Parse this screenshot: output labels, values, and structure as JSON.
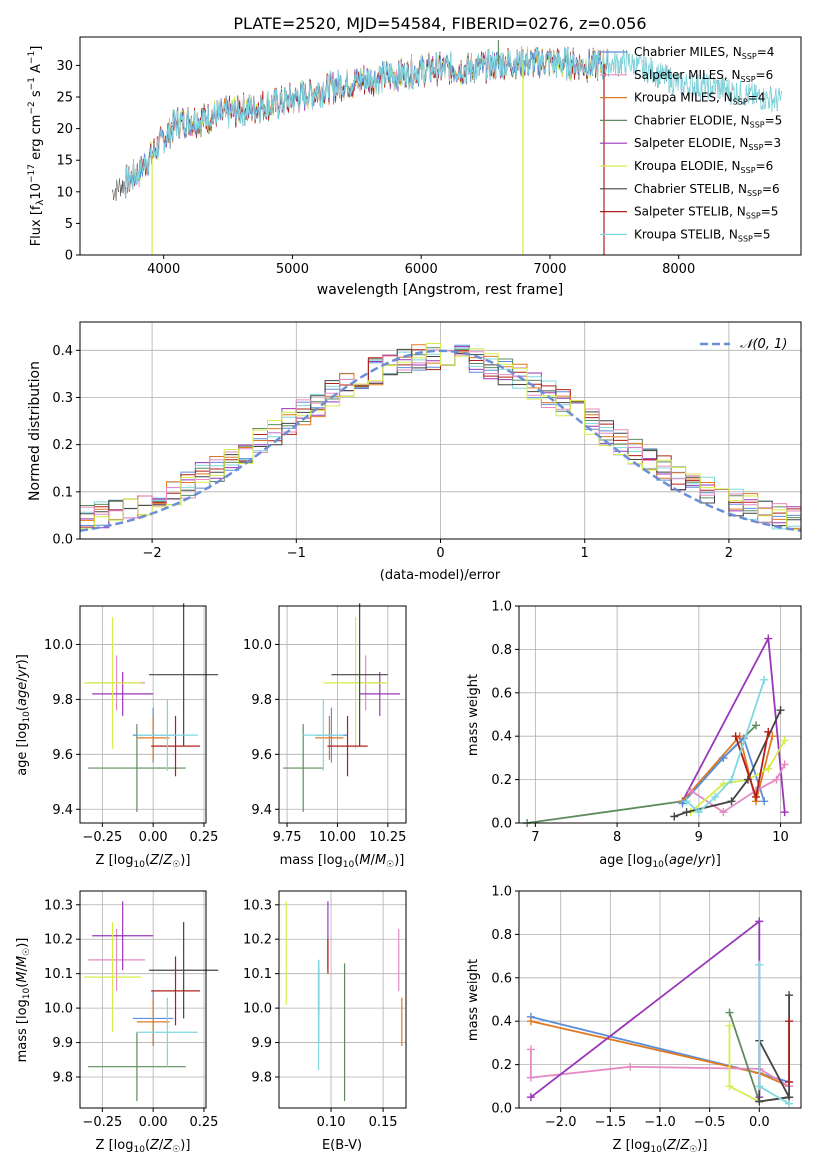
{
  "figure_title": "PLATE=2520, MJD=54584, FIBERID=0276, z=0.056",
  "colors": {
    "chabrier_miles": "#5b8fd9",
    "salpeter_miles": "#e58ac4",
    "kroupa_miles": "#e07a22",
    "chabrier_elodie": "#5e8c5e",
    "salpeter_elodie": "#9a36b8",
    "kroupa_elodie": "#d4ee4e",
    "chabrier_stelib": "#444444",
    "salpeter_stelib": "#b0201a",
    "kroupa_stelib": "#7fd8e0",
    "normal_curve": "#6a8fd6"
  },
  "chart_data": [
    {
      "id": "spectrum",
      "type": "line",
      "xlabel": "wavelength [Angstrom, rest frame]",
      "ylabel": "Flux [f_λ10^-17 erg cm^-2 s^-1 A^-1]",
      "xlim": [
        3350,
        8950
      ],
      "ylim": [
        0,
        34.5
      ],
      "xticks": [
        4000,
        5000,
        6000,
        7000,
        8000
      ],
      "yticks": [
        0,
        5,
        10,
        15,
        20,
        25,
        30
      ],
      "grid": false,
      "legend_position": "lower-right",
      "legend": [
        "Chabrier MILES, N_SSP=4",
        "Salpeter MILES, N_SSP=6",
        "Kroupa MILES, N_SSP=4",
        "Chabrier ELODIE, N_SSP=5",
        "Salpeter ELODIE, N_SSP=3",
        "Kroupa ELODIE, N_SSP=6",
        "Chabrier STELIB, N_SSP=6",
        "Salpeter STELIB, N_SSP=5",
        "Kroupa STELIB, N_SSP=5"
      ],
      "continuum": {
        "x": [
          3600,
          3800,
          3950,
          4100,
          4300,
          4600,
          4900,
          5200,
          5500,
          5800,
          6100,
          6400,
          6700,
          7000,
          7300,
          7600,
          7800,
          8000,
          8300,
          8600,
          8800
        ],
        "y": [
          10,
          13,
          17,
          21,
          21.5,
          23,
          24,
          26,
          27.5,
          28.5,
          29.5,
          29.5,
          30.5,
          30.5,
          30,
          30.5,
          29,
          27,
          26.5,
          25,
          24.5
        ]
      },
      "spikes": [
        {
          "x": 3910,
          "y": 0
        },
        {
          "x": 6790,
          "y": 0
        },
        {
          "x": 7420,
          "y": 0
        },
        {
          "x": 6600,
          "y": 34
        }
      ]
    },
    {
      "id": "residuals",
      "type": "histogram",
      "xlabel": "(data-model)/error",
      "ylabel": "Normed distribution",
      "xlim": [
        -2.5,
        2.5
      ],
      "ylim": [
        0,
        0.46
      ],
      "xticks": [
        -2,
        -1,
        0,
        1,
        2
      ],
      "yticks": [
        0.0,
        0.1,
        0.2,
        0.3,
        0.4
      ],
      "grid": true,
      "legend_position": "upper-right",
      "legend": [
        "𝒩(0, 1)"
      ],
      "reference_curve": "normal(0, 1)",
      "bin_width": 0.1,
      "series_count": 9
    },
    {
      "id": "age_vs_Z",
      "type": "errorbar",
      "xlabel": "Z [log10(Z/Z☉)]",
      "ylabel": "age [log10(age/yr)]",
      "xlim": [
        -0.36,
        0.26
      ],
      "ylim": [
        9.35,
        10.14
      ],
      "xticks": [
        -0.25,
        0.0,
        0.25
      ],
      "xtick_labels": [
        "−0.25",
        "0.00",
        "0.25"
      ],
      "yticks": [
        9.4,
        9.6,
        9.8,
        10.0
      ],
      "ytick_labels": [
        "9.4",
        "9.6",
        "9.8",
        "10.0"
      ],
      "grid": true,
      "points": [
        {
          "series": "chabrier_miles",
          "x": 0.0,
          "xerr": 0.1,
          "y": 9.67,
          "yerr": 0.1
        },
        {
          "series": "salpeter_miles",
          "x": -0.18,
          "xerr": 0.14,
          "y": 9.86,
          "yerr": 0.1
        },
        {
          "series": "kroupa_miles",
          "x": 0.0,
          "xerr": 0.08,
          "y": 9.66,
          "yerr": 0.08
        },
        {
          "series": "chabrier_elodie",
          "x": -0.08,
          "xerr": 0.24,
          "y": 9.55,
          "yerr": 0.16
        },
        {
          "series": "salpeter_elodie",
          "x": -0.15,
          "xerr": 0.15,
          "y": 9.82,
          "yerr": 0.08
        },
        {
          "series": "kroupa_elodie",
          "x": -0.2,
          "xerr": 0.14,
          "y": 9.86,
          "yerr": 0.24
        },
        {
          "series": "chabrier_stelib",
          "x": 0.15,
          "xerr": 0.17,
          "y": 9.89,
          "yerr": 0.26
        },
        {
          "series": "salpeter_stelib",
          "x": 0.11,
          "xerr": 0.12,
          "y": 9.63,
          "yerr": 0.11
        },
        {
          "series": "kroupa_stelib",
          "x": 0.07,
          "xerr": 0.15,
          "y": 9.67,
          "yerr": 0.13
        }
      ]
    },
    {
      "id": "age_vs_mass",
      "type": "errorbar",
      "xlabel": "mass [log10(M/M☉)]",
      "xlim": [
        9.71,
        10.34
      ],
      "ylim": [
        9.35,
        10.14
      ],
      "xticks": [
        9.75,
        10.0,
        10.25
      ],
      "xtick_labels": [
        "9.75",
        "10.00",
        "10.25"
      ],
      "yticks": [
        9.4,
        9.6,
        9.8,
        10.0
      ],
      "ytick_labels": [
        "9.4",
        "9.6",
        "9.8",
        "10.0"
      ],
      "grid": true,
      "points": [
        {
          "series": "chabrier_miles",
          "x": 9.97,
          "xerr": 0.08,
          "y": 9.67,
          "yerr": 0.1
        },
        {
          "series": "salpeter_miles",
          "x": 10.14,
          "xerr": 0.09,
          "y": 9.86,
          "yerr": 0.1
        },
        {
          "series": "kroupa_miles",
          "x": 9.96,
          "xerr": 0.07,
          "y": 9.66,
          "yerr": 0.08
        },
        {
          "series": "chabrier_elodie",
          "x": 9.83,
          "xerr": 0.1,
          "y": 9.55,
          "yerr": 0.16
        },
        {
          "series": "salpeter_elodie",
          "x": 10.21,
          "xerr": 0.1,
          "y": 9.82,
          "yerr": 0.08
        },
        {
          "series": "kroupa_elodie",
          "x": 10.09,
          "xerr": 0.16,
          "y": 9.86,
          "yerr": 0.24
        },
        {
          "series": "chabrier_stelib",
          "x": 10.11,
          "xerr": 0.14,
          "y": 9.89,
          "yerr": 0.26
        },
        {
          "series": "salpeter_stelib",
          "x": 10.05,
          "xerr": 0.1,
          "y": 9.63,
          "yerr": 0.11
        },
        {
          "series": "kroupa_stelib",
          "x": 9.93,
          "xerr": 0.1,
          "y": 9.67,
          "yerr": 0.13
        }
      ]
    },
    {
      "id": "mass_weight_vs_age",
      "type": "line",
      "xlabel": "age [log10(age/yr)]",
      "ylabel": "mass weight",
      "xlim": [
        6.8,
        10.25
      ],
      "ylim": [
        0,
        1.0
      ],
      "xticks": [
        7,
        8,
        9,
        10
      ],
      "yticks": [
        0.0,
        0.2,
        0.4,
        0.6,
        0.8,
        1.0
      ],
      "grid": true,
      "series": [
        {
          "key": "chabrier_elodie",
          "x": [
            6.9,
            8.8,
            9.3,
            9.7
          ],
          "y": [
            0.0,
            0.1,
            0.3,
            0.45
          ]
        },
        {
          "key": "salpeter_elodie",
          "x": [
            8.8,
            9.85,
            10.05
          ],
          "y": [
            0.1,
            0.85,
            0.05
          ]
        },
        {
          "key": "kroupa_miles",
          "x": [
            8.8,
            9.5,
            9.7,
            9.9
          ],
          "y": [
            0.1,
            0.4,
            0.1,
            0.4
          ]
        },
        {
          "key": "chabrier_miles",
          "x": [
            8.8,
            9.3,
            9.55,
            9.8
          ],
          "y": [
            0.09,
            0.3,
            0.39,
            0.1
          ]
        },
        {
          "key": "salpeter_miles",
          "x": [
            8.9,
            9.3,
            9.7,
            9.95,
            10.05
          ],
          "y": [
            0.15,
            0.05,
            0.15,
            0.2,
            0.27
          ]
        },
        {
          "key": "kroupa_elodie",
          "x": [
            8.9,
            9.3,
            9.6,
            9.85,
            10.05
          ],
          "y": [
            0.05,
            0.18,
            0.2,
            0.25,
            0.38
          ]
        },
        {
          "key": "chabrier_stelib",
          "x": [
            8.7,
            8.85,
            9.4,
            9.6,
            10.0
          ],
          "y": [
            0.03,
            0.05,
            0.1,
            0.2,
            0.52
          ]
        },
        {
          "key": "salpeter_stelib",
          "x": [
            9.45,
            9.7,
            9.85
          ],
          "y": [
            0.4,
            0.12,
            0.42
          ]
        },
        {
          "key": "kroupa_stelib",
          "x": [
            8.85,
            9.0,
            9.2,
            9.4,
            9.8
          ],
          "y": [
            0.1,
            0.05,
            0.12,
            0.2,
            0.66
          ]
        }
      ]
    },
    {
      "id": "mass_vs_Z",
      "type": "errorbar",
      "xlabel": "Z [log10(Z/Z☉)]",
      "ylabel": "mass [log10(M/M☉)]",
      "xlim": [
        -0.36,
        0.26
      ],
      "ylim": [
        9.71,
        10.34
      ],
      "xticks": [
        -0.25,
        0.0,
        0.25
      ],
      "xtick_labels": [
        "−0.25",
        "0.00",
        "0.25"
      ],
      "yticks": [
        9.8,
        9.9,
        10.0,
        10.1,
        10.2,
        10.3
      ],
      "ytick_labels": [
        "9.8",
        "9.9",
        "10.0",
        "10.1",
        "10.2",
        "10.3"
      ],
      "grid": true,
      "points": [
        {
          "series": "chabrier_miles",
          "x": 0.0,
          "xerr": 0.1,
          "y": 9.97,
          "yerr": 0.08
        },
        {
          "series": "salpeter_miles",
          "x": -0.18,
          "xerr": 0.14,
          "y": 10.14,
          "yerr": 0.09
        },
        {
          "series": "kroupa_miles",
          "x": 0.0,
          "xerr": 0.08,
          "y": 9.96,
          "yerr": 0.07
        },
        {
          "series": "chabrier_elodie",
          "x": -0.08,
          "xerr": 0.24,
          "y": 9.83,
          "yerr": 0.1
        },
        {
          "series": "salpeter_elodie",
          "x": -0.15,
          "xerr": 0.15,
          "y": 10.21,
          "yerr": 0.1
        },
        {
          "series": "kroupa_elodie",
          "x": -0.2,
          "xerr": 0.14,
          "y": 10.09,
          "yerr": 0.16
        },
        {
          "series": "chabrier_stelib",
          "x": 0.15,
          "xerr": 0.17,
          "y": 10.11,
          "yerr": 0.14
        },
        {
          "series": "salpeter_stelib",
          "x": 0.11,
          "xerr": 0.12,
          "y": 10.05,
          "yerr": 0.1
        },
        {
          "series": "kroupa_stelib",
          "x": 0.07,
          "xerr": 0.15,
          "y": 9.93,
          "yerr": 0.1
        }
      ]
    },
    {
      "id": "mass_vs_ebv",
      "type": "errorbar",
      "xlabel": "E(B-V)",
      "xlim": [
        0.05,
        0.172
      ],
      "ylim": [
        9.71,
        10.34
      ],
      "xticks": [
        0.1,
        0.15
      ],
      "xtick_labels": [
        "0.10",
        "0.15"
      ],
      "yticks": [
        9.8,
        9.9,
        10.0,
        10.1,
        10.2,
        10.3
      ],
      "ytick_labels": [
        "9.8",
        "9.9",
        "10.0",
        "10.1",
        "10.2",
        "10.3"
      ],
      "grid": true,
      "points": [
        {
          "series": "chabrier_miles",
          "x": 0.088,
          "y": 10.05,
          "yerr": 0.07
        },
        {
          "series": "salpeter_miles",
          "x": 0.165,
          "y": 10.14,
          "yerr": 0.09
        },
        {
          "series": "kroupa_miles",
          "x": 0.168,
          "y": 9.96,
          "yerr": 0.07
        },
        {
          "series": "chabrier_elodie",
          "x": 0.113,
          "y": 9.93,
          "yerr": 0.2
        },
        {
          "series": "salpeter_elodie",
          "x": 0.097,
          "y": 10.21,
          "yerr": 0.1
        },
        {
          "series": "kroupa_elodie",
          "x": 0.057,
          "y": 10.16,
          "yerr": 0.15
        },
        {
          "series": "chabrier_stelib",
          "x": 0.088,
          "y": 10.02,
          "yerr": 0.12
        },
        {
          "series": "salpeter_stelib",
          "x": 0.097,
          "y": 10.15,
          "yerr": 0.05
        },
        {
          "series": "kroupa_stelib",
          "x": 0.088,
          "y": 9.98,
          "yerr": 0.16
        }
      ]
    },
    {
      "id": "mass_weight_vs_Z",
      "type": "line",
      "xlabel": "Z [log10(Z/Z☉)]",
      "ylabel": "mass weight",
      "xlim": [
        -2.42,
        0.42
      ],
      "ylim": [
        0,
        1.0
      ],
      "xticks": [
        -2.0,
        -1.5,
        -1.0,
        -0.5,
        0.0
      ],
      "xtick_labels": [
        "−2.0",
        "−1.5",
        "−1.0",
        "−0.5",
        "0.0"
      ],
      "yticks": [
        0.0,
        0.2,
        0.4,
        0.6,
        0.8,
        1.0
      ],
      "grid": true,
      "series": [
        {
          "key": "chabrier_miles",
          "x": [
            -2.3,
            0.0,
            0.3
          ],
          "y": [
            0.42,
            0.16,
            0.12
          ]
        },
        {
          "key": "kroupa_miles",
          "x": [
            -2.3,
            0.0,
            0.3
          ],
          "y": [
            0.4,
            0.16,
            0.1
          ]
        },
        {
          "key": "salpeter_miles",
          "x": [
            -2.3,
            -2.3,
            -1.3,
            0.0,
            0.3
          ],
          "y": [
            0.27,
            0.14,
            0.19,
            0.18,
            0.1
          ]
        },
        {
          "key": "salpeter_elodie",
          "x": [
            -2.3,
            0.0,
            0.0
          ],
          "y": [
            0.05,
            0.86,
            0.05
          ]
        },
        {
          "key": "chabrier_elodie",
          "x": [
            -0.3,
            0.0,
            0.3
          ],
          "y": [
            0.44,
            0.03,
            0.05
          ]
        },
        {
          "key": "kroupa_elodie",
          "x": [
            -0.3,
            -0.3,
            0.0
          ],
          "y": [
            0.38,
            0.1,
            0.03
          ]
        },
        {
          "key": "chabrier_stelib",
          "x": [
            0.3,
            0.3,
            0.0,
            0.0,
            0.3
          ],
          "y": [
            0.52,
            0.05,
            0.03,
            0.31,
            0.05
          ]
        },
        {
          "key": "salpeter_stelib",
          "x": [
            0.3,
            0.3
          ],
          "y": [
            0.4,
            0.12
          ]
        },
        {
          "key": "kroupa_stelib",
          "x": [
            0.0,
            0.0,
            0.3
          ],
          "y": [
            0.66,
            0.1,
            0.02
          ]
        }
      ]
    }
  ]
}
